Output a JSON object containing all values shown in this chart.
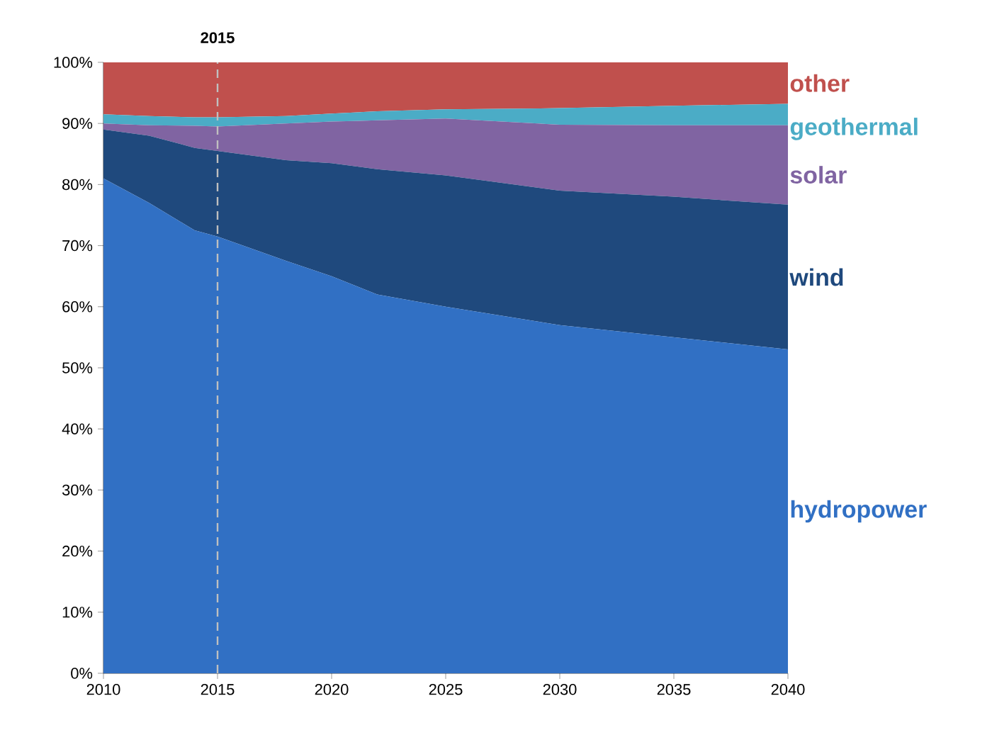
{
  "chart_data": {
    "type": "area",
    "stacked": true,
    "x": [
      2010,
      2012,
      2014,
      2015,
      2018,
      2020,
      2022,
      2025,
      2030,
      2035,
      2040
    ],
    "series": [
      {
        "name": "hydropower",
        "color": "#3170c4",
        "values": [
          81,
          77,
          72.5,
          71.5,
          67.5,
          65,
          62,
          60,
          57,
          55,
          53
        ]
      },
      {
        "name": "wind",
        "color": "#1f497d",
        "values": [
          8,
          11,
          13.5,
          14,
          16.5,
          18.5,
          20.5,
          21.5,
          22,
          23,
          23.7
        ]
      },
      {
        "name": "solar",
        "color": "#8064a2",
        "values": [
          1,
          1.7,
          3.6,
          4,
          6,
          6.8,
          8,
          9.3,
          10.8,
          11.7,
          13
        ]
      },
      {
        "name": "geothermal",
        "color": "#4bacc6",
        "values": [
          1.5,
          1.5,
          1.4,
          1.5,
          1.2,
          1.3,
          1.5,
          1.5,
          2.7,
          3.2,
          3.5
        ]
      },
      {
        "name": "other",
        "color": "#c0504d",
        "values": [
          8.5,
          8.8,
          9,
          9,
          8.8,
          8.4,
          8,
          7.7,
          7.5,
          7.1,
          6.8
        ]
      }
    ],
    "xlim": [
      2010,
      2040
    ],
    "xticks": [
      2010,
      2015,
      2020,
      2025,
      2030,
      2035,
      2040
    ],
    "ylim": [
      0,
      100
    ],
    "yticks": [
      {
        "value": 0,
        "label": "0%"
      },
      {
        "value": 10,
        "label": "10%"
      },
      {
        "value": 20,
        "label": "20%"
      },
      {
        "value": 30,
        "label": "30%"
      },
      {
        "value": 40,
        "label": "40%"
      },
      {
        "value": 50,
        "label": "50%"
      },
      {
        "value": 60,
        "label": "60%"
      },
      {
        "value": 70,
        "label": "70%"
      },
      {
        "value": 80,
        "label": "80%"
      },
      {
        "value": 90,
        "label": "90%"
      },
      {
        "value": 100,
        "label": "100%"
      }
    ],
    "ref_lines": [
      {
        "axis": "x",
        "value": 2015,
        "label": "2015",
        "color": "#bfbfbf",
        "line_style": "dashed"
      }
    ]
  }
}
